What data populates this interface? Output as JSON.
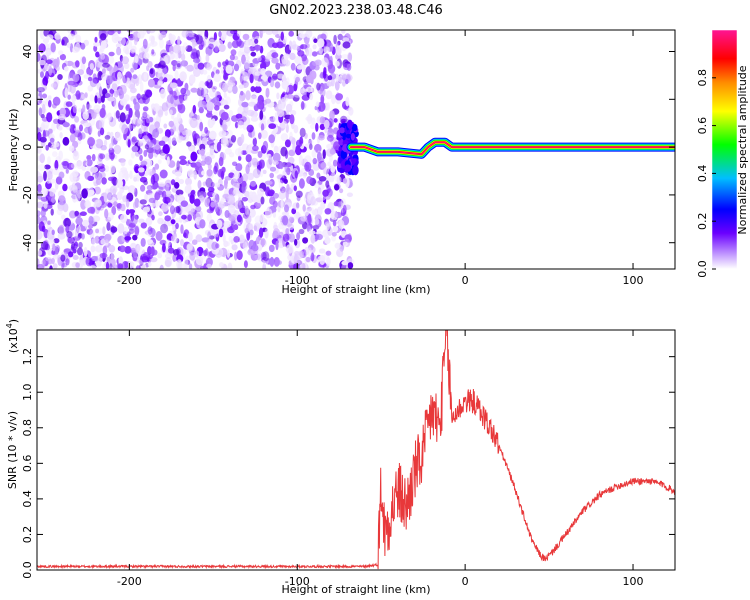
{
  "title": "GN02.2023.238.03.48.C46",
  "chart_data": [
    {
      "type": "heatmap",
      "xlabel": "Height of straight line (km)",
      "ylabel": "Frequency (Hz)",
      "xlim": [
        -255,
        125
      ],
      "ylim": [
        -51,
        49
      ],
      "xticks": [
        -200,
        -100,
        0,
        100
      ],
      "xtick_labels": [
        "-200",
        "-100",
        "0",
        "100"
      ],
      "yticks": [
        -40,
        -20,
        0,
        20,
        40
      ],
      "ytick_labels": [
        "-40",
        "-20",
        "0",
        "20",
        "40"
      ],
      "noise_region_x": [
        -255,
        -68
      ],
      "signal_track": [
        {
          "x": -68,
          "y": 0
        },
        {
          "x": -60,
          "y": 0
        },
        {
          "x": -52,
          "y": -2
        },
        {
          "x": -40,
          "y": -2
        },
        {
          "x": -26,
          "y": -3
        },
        {
          "x": -22,
          "y": 0
        },
        {
          "x": -18,
          "y": 2
        },
        {
          "x": -12,
          "y": 2
        },
        {
          "x": -8,
          "y": 0
        },
        {
          "x": 125,
          "y": 0
        }
      ],
      "colorbar": {
        "label": "Normalized spectral amplitude",
        "range": [
          0,
          1
        ],
        "ticks": [
          0.0,
          0.2,
          0.4,
          0.6,
          0.8
        ],
        "tick_labels": [
          "0.0",
          "0.2",
          "0.4",
          "0.6",
          "0.8"
        ],
        "colors": [
          "#ffffff",
          "#8a2be2",
          "#0000ff",
          "#00bfff",
          "#00ff00",
          "#ffff00",
          "#ff8c00",
          "#ff0000",
          "#ff1493"
        ]
      }
    },
    {
      "type": "line",
      "xlabel": "Height of straight line (km)",
      "ylabel": "SNR (10 * v/v)",
      "y_multiplier": "(x10",
      "y_multiplier_exp": "4",
      "y_multiplier_close": ")",
      "xlim": [
        -255,
        125
      ],
      "ylim": [
        0,
        1.35
      ],
      "xticks": [
        -200,
        -100,
        0,
        100
      ],
      "xtick_labels": [
        "-200",
        "-100",
        "0",
        "100"
      ],
      "yticks": [
        0.0,
        0.2,
        0.4,
        0.6,
        0.8,
        1.0,
        1.2
      ],
      "ytick_labels": [
        "0.0",
        "0.2",
        "0.4",
        "0.6",
        "0.8",
        "1.0",
        "1.2"
      ],
      "line_color": "#e8383a",
      "series": [
        {
          "points": [
            [
              -255,
              0.02
            ],
            [
              -200,
              0.02
            ],
            [
              -150,
              0.02
            ],
            [
              -100,
              0.02
            ],
            [
              -60,
              0.02
            ],
            [
              -52,
              0.03
            ],
            [
              -50,
              0.5
            ],
            [
              -48,
              0.2
            ],
            [
              -45,
              0.3
            ],
            [
              -40,
              0.45
            ],
            [
              -35,
              0.35
            ],
            [
              -30,
              0.55
            ],
            [
              -25,
              0.65
            ],
            [
              -20,
              0.9
            ],
            [
              -15,
              0.8
            ],
            [
              -11,
              1.35
            ],
            [
              -8,
              0.85
            ],
            [
              0,
              0.95
            ],
            [
              5,
              0.95
            ],
            [
              10,
              0.88
            ],
            [
              15,
              0.8
            ],
            [
              20,
              0.7
            ],
            [
              25,
              0.58
            ],
            [
              30,
              0.45
            ],
            [
              35,
              0.3
            ],
            [
              40,
              0.16
            ],
            [
              45,
              0.08
            ],
            [
              48,
              0.06
            ],
            [
              52,
              0.1
            ],
            [
              60,
              0.2
            ],
            [
              70,
              0.33
            ],
            [
              80,
              0.42
            ],
            [
              90,
              0.47
            ],
            [
              100,
              0.5
            ],
            [
              110,
              0.5
            ],
            [
              118,
              0.48
            ],
            [
              125,
              0.44
            ]
          ]
        }
      ]
    }
  ]
}
